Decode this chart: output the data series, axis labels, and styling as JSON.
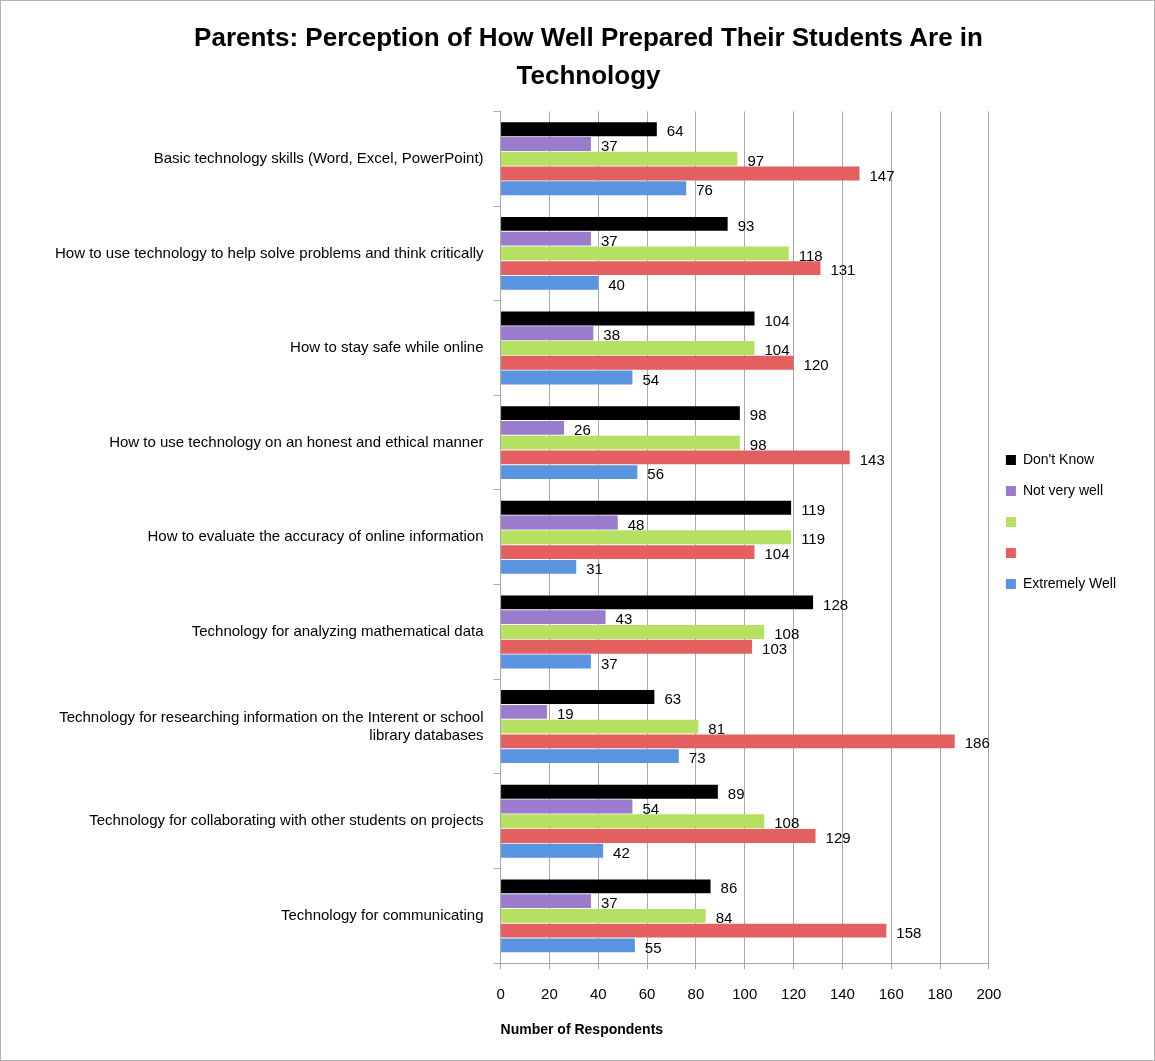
{
  "chart_data": {
    "type": "bar",
    "orientation": "horizontal",
    "title": "Parents: Perception of How Well Prepared Their Students Are in Technology",
    "xlabel": "Number of Respondents",
    "categories": [
      "Basic technology skills (Word, Excel, PowerPoint)",
      "How to use technology to help solve problems and think critically",
      "How to stay safe while online",
      "How to use technology on an honest and ethical manner",
      "How to evaluate the accuracy of online information",
      "Technology for analyzing mathematical data",
      "Technology for researching information on the Interent or school library databases",
      "Technology for collaborating with other students on projects",
      "Technology for communicating"
    ],
    "series": [
      {
        "name": "Don't Know",
        "color": "#000000",
        "values": [
          64,
          93,
          104,
          98,
          119,
          128,
          63,
          89,
          86
        ]
      },
      {
        "name": "Not very well",
        "color": "#9a7bcc",
        "values": [
          37,
          37,
          38,
          26,
          48,
          43,
          19,
          54,
          37
        ]
      },
      {
        "color": "#b5e061",
        "values": [
          97,
          118,
          104,
          98,
          119,
          108,
          81,
          108,
          84
        ]
      },
      {
        "color": "#e46060",
        "values": [
          147,
          131,
          120,
          143,
          104,
          103,
          186,
          129,
          158
        ]
      },
      {
        "name": "Extremely Well",
        "color": "#5a94e0",
        "values": [
          76,
          40,
          54,
          56,
          31,
          37,
          73,
          42,
          55
        ]
      }
    ],
    "xlim": [
      0,
      200
    ],
    "xticks": [
      0,
      20,
      40,
      60,
      80,
      100,
      120,
      140,
      160,
      180,
      200
    ],
    "grid": "x",
    "legend": "right",
    "data_labels": true
  }
}
